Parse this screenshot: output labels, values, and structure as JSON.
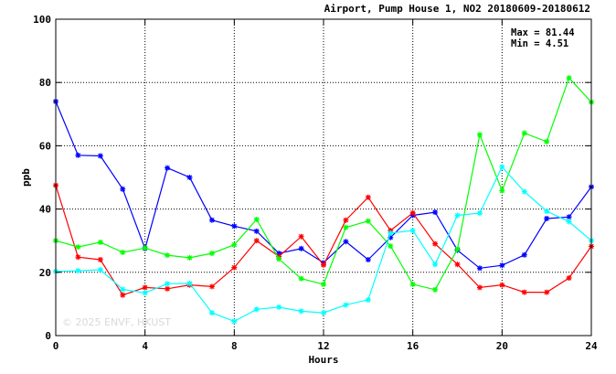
{
  "watermark": "© 2025 ENVF, HKUST",
  "chart_data": {
    "type": "line",
    "title": "Airport, Pump House 1, NO2 20180609-20180612",
    "xlabel": "Hours",
    "ylabel": "ppb",
    "xlim": [
      0,
      24
    ],
    "ylim": [
      0,
      100
    ],
    "xticks": [
      0,
      4,
      8,
      12,
      16,
      20,
      24
    ],
    "yticks": [
      0,
      20,
      40,
      60,
      80,
      100
    ],
    "grid": true,
    "stats": {
      "max_label": "Max = 81.44",
      "min_label": "Min =  4.51"
    },
    "x": [
      0,
      1,
      2,
      3,
      4,
      5,
      6,
      7,
      8,
      9,
      10,
      11,
      12,
      13,
      14,
      15,
      16,
      17,
      18,
      19,
      20,
      21,
      22,
      23,
      24
    ],
    "series": [
      {
        "color": "#0000ff",
        "values": [
          74,
          57,
          56.8,
          46.3,
          27.5,
          53,
          50,
          36.5,
          34.6,
          33,
          26,
          27.5,
          23,
          29.7,
          24,
          31,
          38,
          39,
          27,
          21.3,
          22.2,
          25.5,
          37,
          37.5,
          47
        ]
      },
      {
        "color": "#ff0000",
        "values": [
          47.5,
          24.8,
          24,
          12.8,
          15.2,
          14.8,
          16,
          15.5,
          21.5,
          30,
          25,
          31.3,
          22.3,
          36.5,
          43.7,
          33.2,
          38.8,
          29,
          22.5,
          15.2,
          16,
          13.7,
          13.7,
          18.2,
          28.2
        ]
      },
      {
        "color": "#00ff00",
        "values": [
          30,
          28,
          29.5,
          26.3,
          27.7,
          25.4,
          24.6,
          26,
          28.7,
          36.7,
          24.2,
          18,
          16.2,
          34.2,
          36.2,
          28.3,
          16.2,
          14.5,
          27.3,
          63.5,
          45.8,
          64,
          61.3,
          81.44,
          73.8
        ]
      },
      {
        "color": "#00ffff",
        "values": [
          20.3,
          20.5,
          20.8,
          14.6,
          13.5,
          16.4,
          16.5,
          7.2,
          4.51,
          8.3,
          9,
          7.7,
          7.2,
          9.7,
          11.3,
          32.4,
          33.2,
          22.5,
          38,
          38.7,
          53.3,
          45.5,
          39.3,
          36,
          30
        ]
      }
    ]
  }
}
